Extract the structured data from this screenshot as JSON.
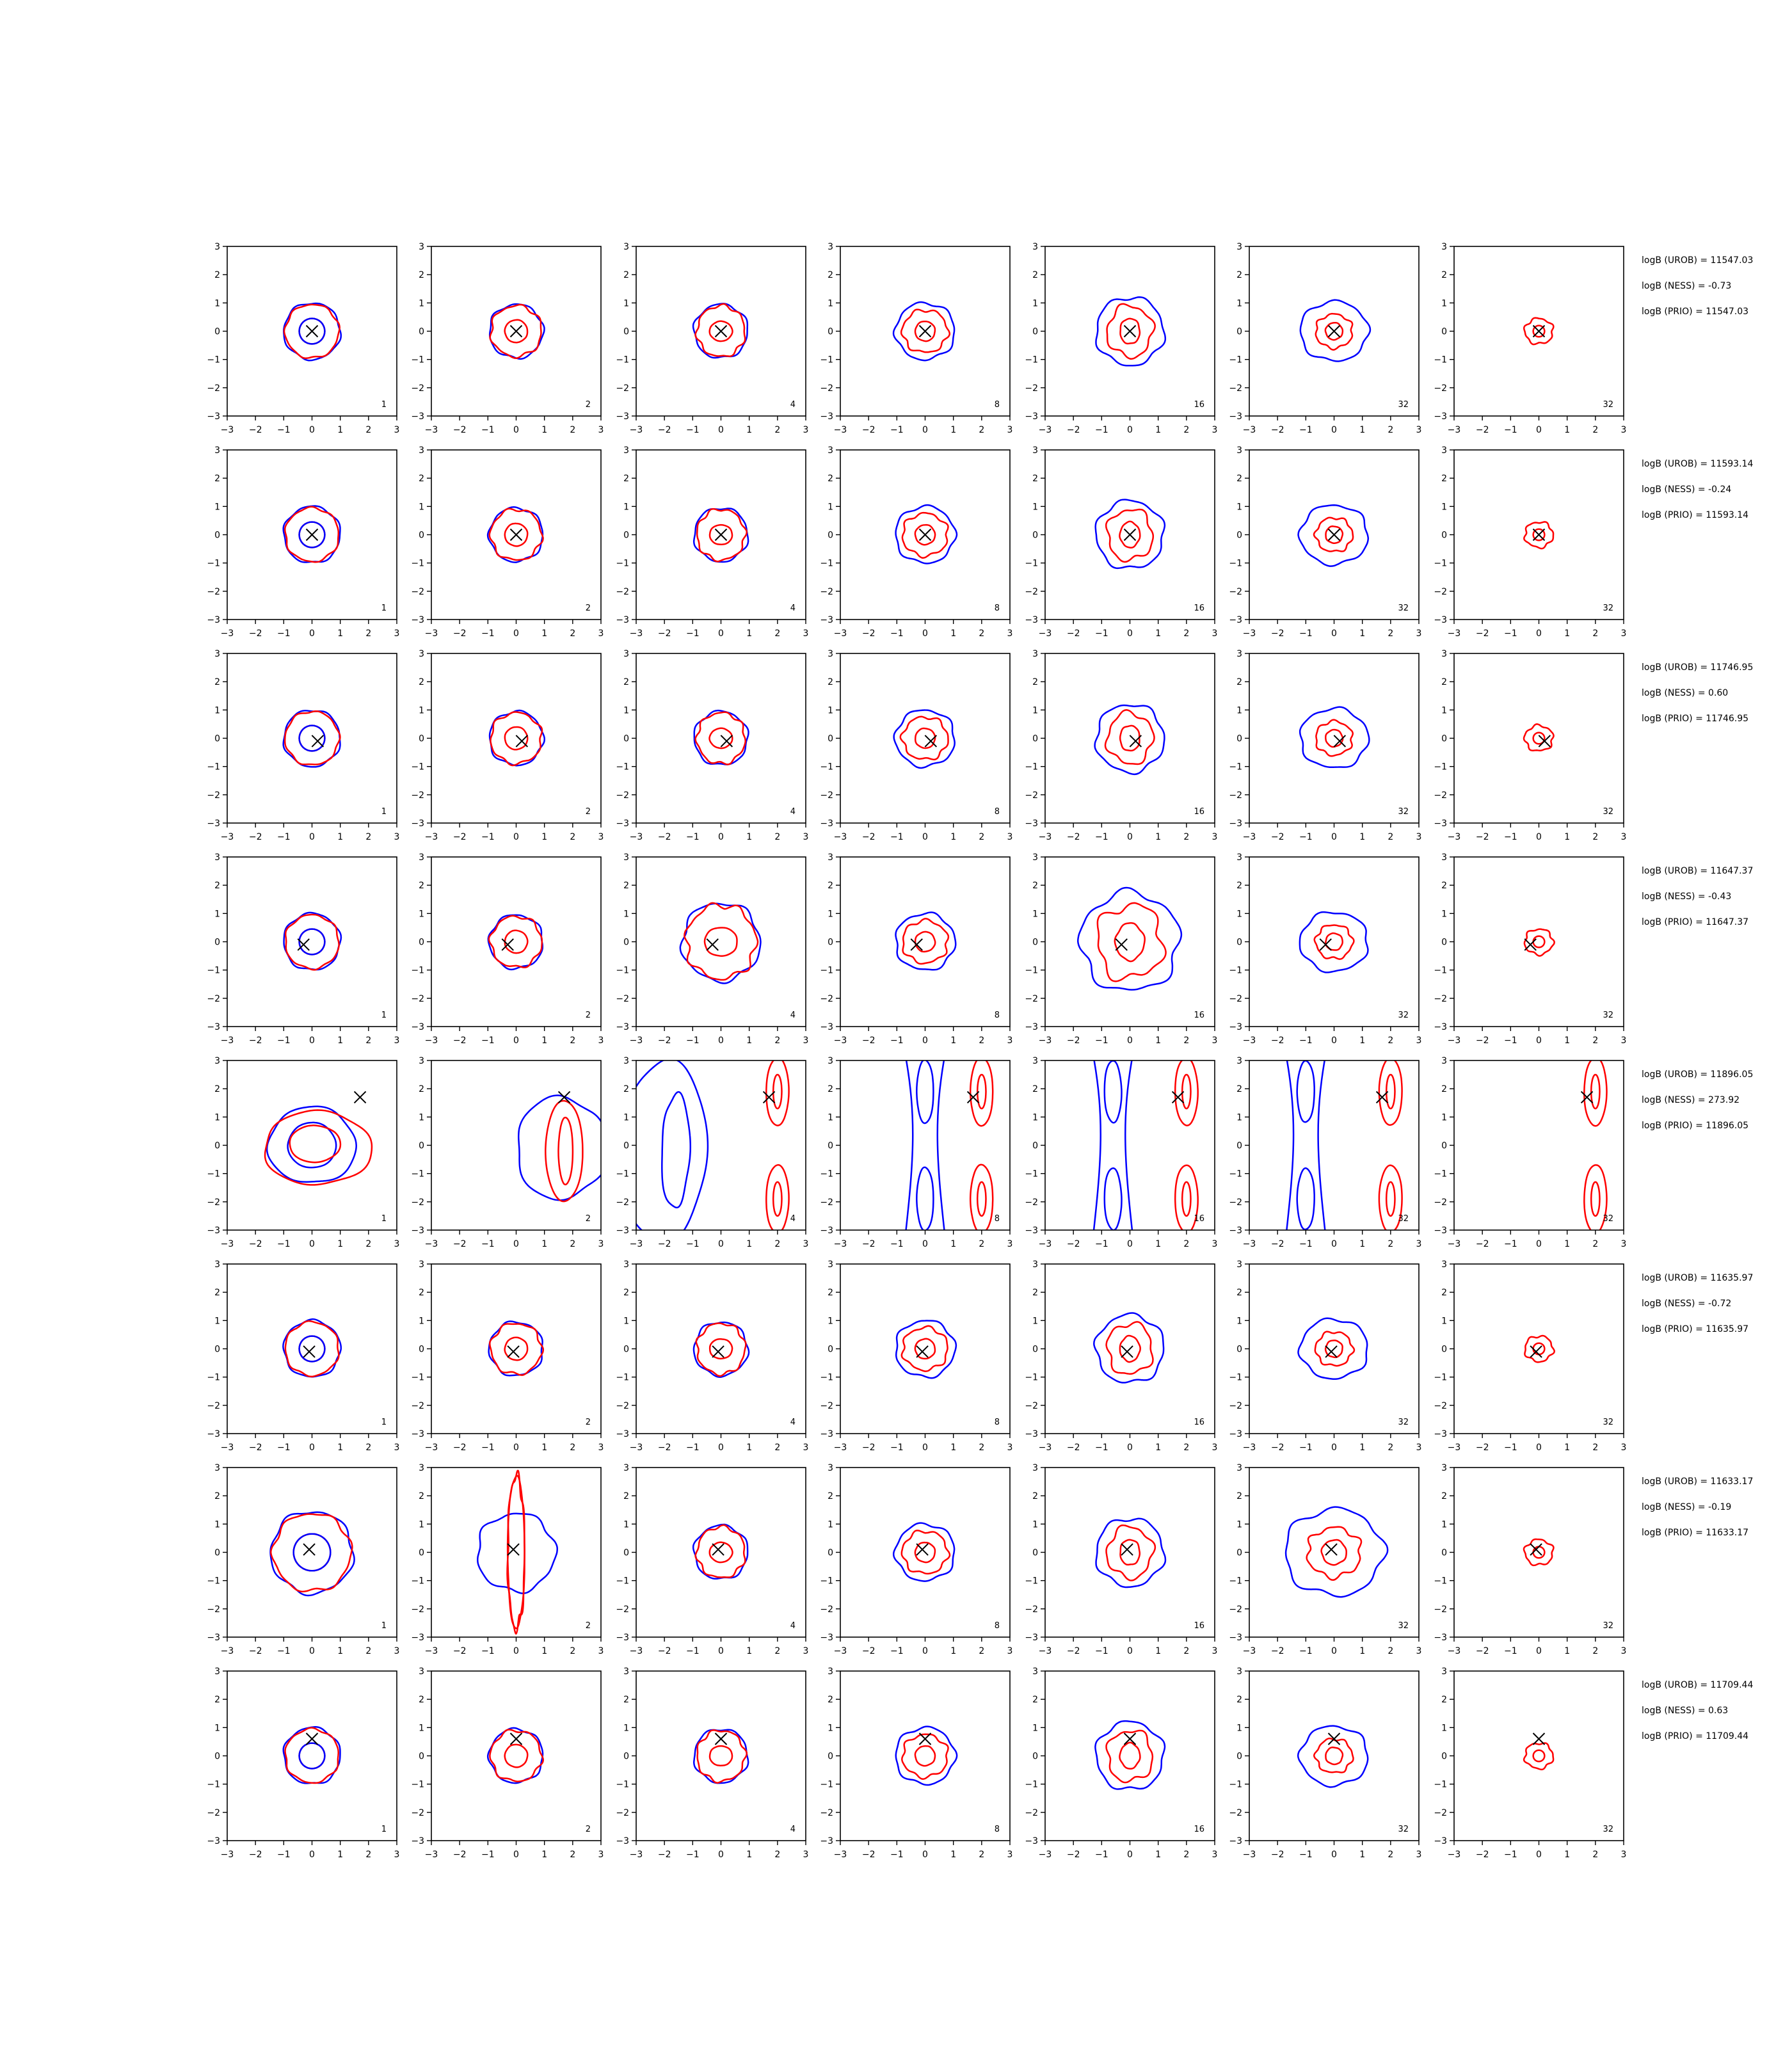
{
  "figure": {
    "columns": [
      "1",
      "2",
      "4",
      "8",
      "16",
      "32",
      "32"
    ],
    "tick_labels": [
      "−3",
      "−2",
      "−1",
      "0",
      "1",
      "2",
      "3"
    ],
    "colors": {
      "blue": "#0000ff",
      "red": "#ff0000",
      "axes": "#000000",
      "marker": "#000000"
    }
  },
  "chart_data": [
    {
      "type": "contour",
      "row": 1,
      "xlim": [
        -3,
        3
      ],
      "ylim": [
        -3,
        3
      ],
      "grid": false,
      "marker_x": [
        {
          "x": 0.0,
          "y": 0.0
        },
        {
          "x": 0.0,
          "y": 0.0
        },
        {
          "x": 0.0,
          "y": 0.0
        },
        {
          "x": 0.0,
          "y": 0.0
        },
        {
          "x": 0.0,
          "y": 0.0
        },
        {
          "x": 0.0,
          "y": 0.0
        },
        {
          "x": 0.0,
          "y": 0.0
        }
      ],
      "panel_labels": [
        "1",
        "2",
        "4",
        "8",
        "16",
        "32",
        "32"
      ],
      "annotations": [
        "logB (UROB) = 11547.03",
        "logB (NESS) = -0.73",
        "logB (PRIO) = 11547.03"
      ]
    },
    {
      "type": "contour",
      "row": 2,
      "xlim": [
        -3,
        3
      ],
      "ylim": [
        -3,
        3
      ],
      "grid": false,
      "marker_x": [
        {
          "x": 0.0,
          "y": 0.0
        },
        {
          "x": 0.0,
          "y": 0.0
        },
        {
          "x": 0.0,
          "y": 0.0
        },
        {
          "x": 0.0,
          "y": 0.0
        },
        {
          "x": 0.0,
          "y": 0.0
        },
        {
          "x": 0.0,
          "y": 0.0
        },
        {
          "x": 0.0,
          "y": 0.0
        }
      ],
      "panel_labels": [
        "1",
        "2",
        "4",
        "8",
        "16",
        "32",
        "32"
      ],
      "annotations": [
        "logB (UROB) = 11593.14",
        "logB (NESS) = -0.24",
        "logB (PRIO) = 11593.14"
      ]
    },
    {
      "type": "contour",
      "row": 3,
      "xlim": [
        -3,
        3
      ],
      "ylim": [
        -3,
        3
      ],
      "grid": false,
      "marker_x": [
        {
          "x": 0.2,
          "y": -0.1
        },
        {
          "x": 0.2,
          "y": -0.1
        },
        {
          "x": 0.2,
          "y": -0.1
        },
        {
          "x": 0.2,
          "y": -0.1
        },
        {
          "x": 0.2,
          "y": -0.1
        },
        {
          "x": 0.2,
          "y": -0.1
        },
        {
          "x": 0.2,
          "y": -0.1
        }
      ],
      "panel_labels": [
        "1",
        "2",
        "4",
        "8",
        "16",
        "32",
        "32"
      ],
      "annotations": [
        "logB (UROB) = 11746.95",
        "logB (NESS) = 0.60",
        "logB (PRIO) = 11746.95"
      ]
    },
    {
      "type": "contour",
      "row": 4,
      "xlim": [
        -3,
        3
      ],
      "ylim": [
        -3,
        3
      ],
      "grid": false,
      "marker_x": [
        {
          "x": -0.3,
          "y": -0.1
        },
        {
          "x": -0.3,
          "y": -0.1
        },
        {
          "x": -0.3,
          "y": -0.1
        },
        {
          "x": -0.3,
          "y": -0.1
        },
        {
          "x": -0.3,
          "y": -0.1
        },
        {
          "x": -0.3,
          "y": -0.1
        },
        {
          "x": -0.3,
          "y": -0.1
        }
      ],
      "panel_labels": [
        "1",
        "2",
        "4",
        "8",
        "16",
        "32",
        "32"
      ],
      "annotations": [
        "logB (UROB) = 11647.37",
        "logB (NESS) = -0.43",
        "logB (PRIO) = 11647.37"
      ]
    },
    {
      "type": "contour",
      "row": 5,
      "xlim": [
        -3,
        3
      ],
      "ylim": [
        -3,
        3
      ],
      "grid": false,
      "marker_x": [
        {
          "x": 1.7,
          "y": 1.7
        },
        {
          "x": 1.7,
          "y": 1.7
        },
        {
          "x": 1.7,
          "y": 1.7
        },
        {
          "x": 1.7,
          "y": 1.7
        },
        {
          "x": 1.7,
          "y": 1.7
        },
        {
          "x": 1.7,
          "y": 1.7
        },
        {
          "x": 1.7,
          "y": 1.7
        }
      ],
      "panel_labels": [
        "1",
        "2",
        "4",
        "8",
        "16",
        "32",
        "32"
      ],
      "annotations": [
        "logB (UROB) = 11896.05",
        "logB (NESS) = 273.92",
        "logB (PRIO) = 11896.05"
      ]
    },
    {
      "type": "contour",
      "row": 6,
      "xlim": [
        -3,
        3
      ],
      "ylim": [
        -3,
        3
      ],
      "grid": false,
      "marker_x": [
        {
          "x": -0.1,
          "y": -0.1
        },
        {
          "x": -0.1,
          "y": -0.1
        },
        {
          "x": -0.1,
          "y": -0.1
        },
        {
          "x": -0.1,
          "y": -0.1
        },
        {
          "x": -0.1,
          "y": -0.1
        },
        {
          "x": -0.1,
          "y": -0.1
        },
        {
          "x": -0.1,
          "y": -0.1
        }
      ],
      "panel_labels": [
        "1",
        "2",
        "4",
        "8",
        "16",
        "32",
        "32"
      ],
      "annotations": [
        "logB (UROB) = 11635.97",
        "logB (NESS) = -0.72",
        "logB (PRIO) = 11635.97"
      ]
    },
    {
      "type": "contour",
      "row": 7,
      "xlim": [
        -3,
        3
      ],
      "ylim": [
        -3,
        3
      ],
      "grid": false,
      "marker_x": [
        {
          "x": -0.1,
          "y": 0.1
        },
        {
          "x": -0.1,
          "y": 0.1
        },
        {
          "x": -0.1,
          "y": 0.1
        },
        {
          "x": -0.1,
          "y": 0.1
        },
        {
          "x": -0.1,
          "y": 0.1
        },
        {
          "x": -0.1,
          "y": 0.1
        },
        {
          "x": -0.1,
          "y": 0.1
        }
      ],
      "panel_labels": [
        "1",
        "2",
        "4",
        "8",
        "16",
        "32",
        "32"
      ],
      "annotations": [
        "logB (UROB) = 11633.17",
        "logB (NESS) = -0.19",
        "logB (PRIO) = 11633.17"
      ]
    },
    {
      "type": "contour",
      "row": 8,
      "xlim": [
        -3,
        3
      ],
      "ylim": [
        -3,
        3
      ],
      "grid": false,
      "marker_x": [
        {
          "x": 0.0,
          "y": 0.6
        },
        {
          "x": 0.0,
          "y": 0.6
        },
        {
          "x": 0.0,
          "y": 0.6
        },
        {
          "x": 0.0,
          "y": 0.6
        },
        {
          "x": 0.0,
          "y": 0.6
        },
        {
          "x": 0.0,
          "y": 0.6
        },
        {
          "x": 0.0,
          "y": 0.6
        }
      ],
      "panel_labels": [
        "1",
        "2",
        "4",
        "8",
        "16",
        "32",
        "32"
      ],
      "annotations": [
        "logB (UROB) = 11709.44",
        "logB (NESS) = 0.63",
        "logB (PRIO) = 11709.44"
      ]
    }
  ]
}
